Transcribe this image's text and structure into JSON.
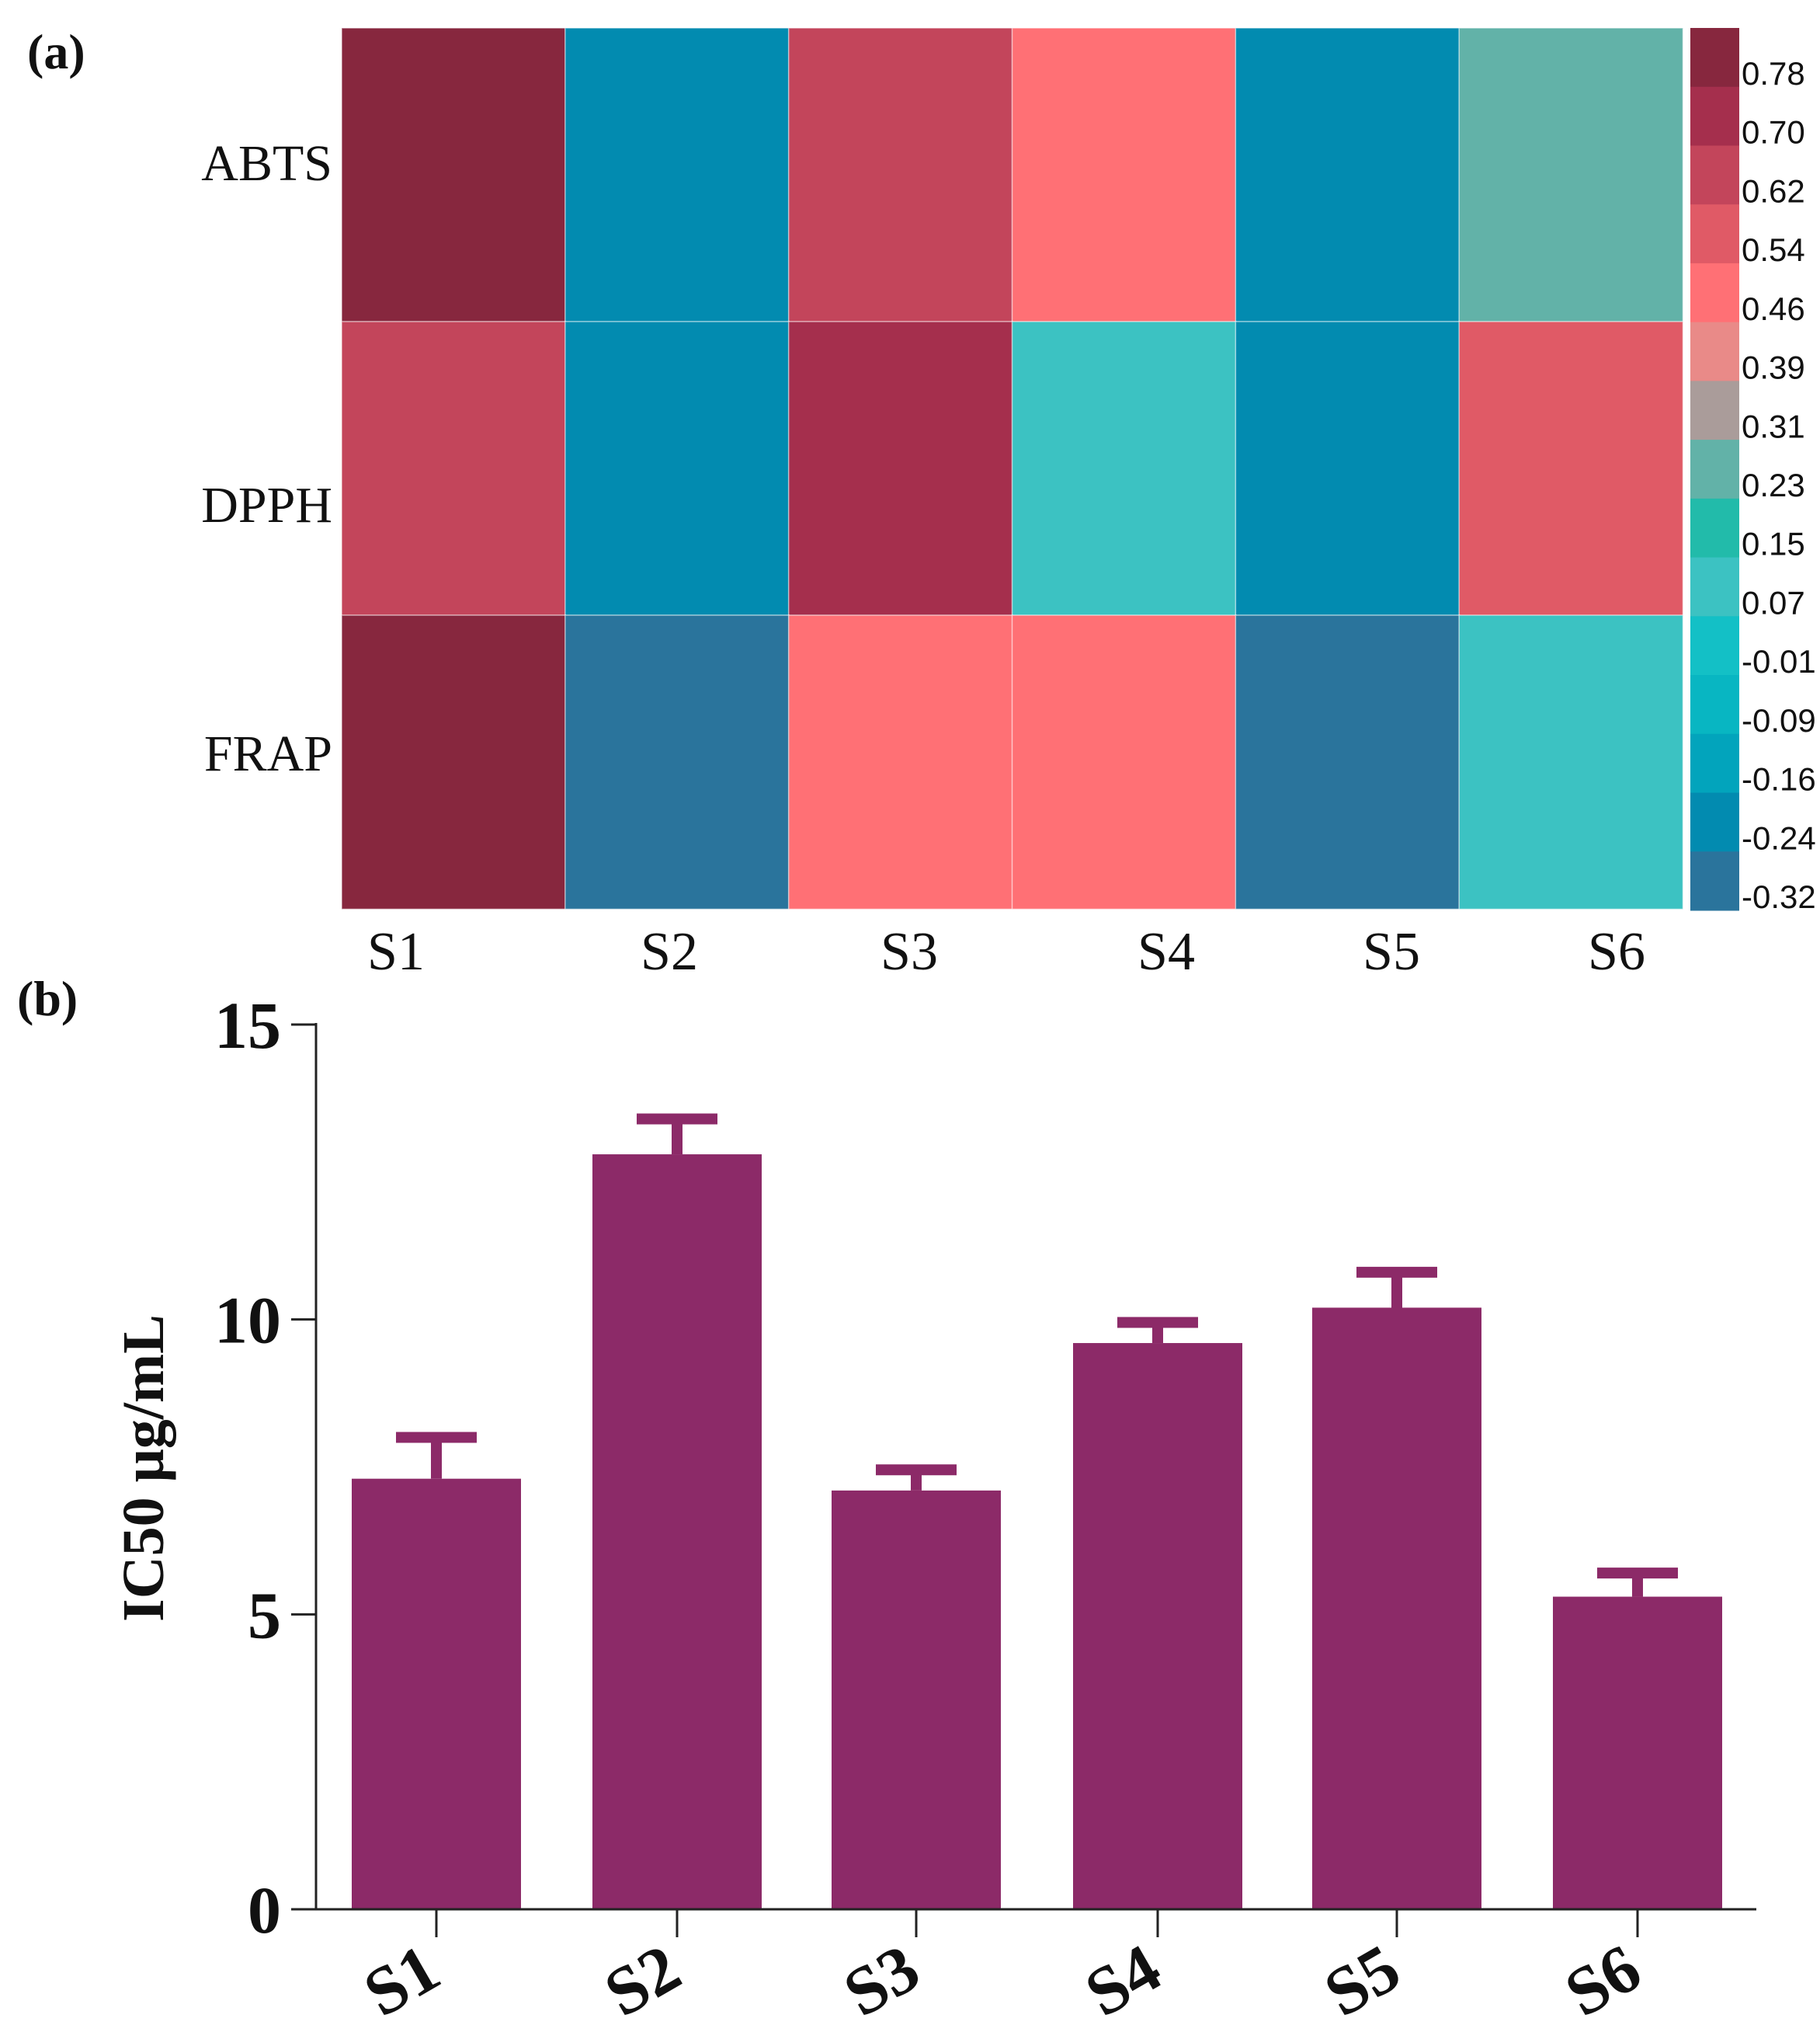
{
  "figure": {
    "panel_a_label": "(a)",
    "panel_b_label": "(b)"
  },
  "chart_data": [
    {
      "type": "heatmap",
      "title": "",
      "rows": [
        "ABTS",
        "DPPH",
        "FRAP"
      ],
      "columns": [
        "S1",
        "S2",
        "S3",
        "S4",
        "S5",
        "S6"
      ],
      "values": [
        [
          0.8,
          -0.26,
          0.62,
          0.46,
          -0.26,
          0.23
        ],
        [
          0.62,
          -0.26,
          0.72,
          0.07,
          -0.26,
          0.54
        ],
        [
          0.8,
          -0.32,
          0.46,
          0.46,
          -0.32,
          0.07
        ]
      ],
      "colorbar": {
        "tick_labels": [
          "0.78",
          "0.70",
          "0.62",
          "0.54",
          "0.46",
          "0.39",
          "0.31",
          "0.23",
          "0.15",
          "0.07",
          "-0.01",
          "-0.09",
          "-0.16",
          "-0.24",
          "-0.32"
        ],
        "levels": [
          {
            "value": 0.78,
            "color": "#87273e"
          },
          {
            "value": 0.7,
            "color": "#a52f4d"
          },
          {
            "value": 0.62,
            "color": "#c3455b"
          },
          {
            "value": 0.54,
            "color": "#e05a66"
          },
          {
            "value": 0.46,
            "color": "#ff7075"
          },
          {
            "value": 0.39,
            "color": "#e98a88"
          },
          {
            "value": 0.31,
            "color": "#aa9c9a"
          },
          {
            "value": 0.23,
            "color": "#62b2a8"
          },
          {
            "value": 0.15,
            "color": "#22bbaa"
          },
          {
            "value": 0.07,
            "color": "#3cc2c2"
          },
          {
            "value": -0.01,
            "color": "#13c0c6"
          },
          {
            "value": -0.09,
            "color": "#08b6c2"
          },
          {
            "value": -0.16,
            "color": "#02a4bc"
          },
          {
            "value": -0.24,
            "color": "#028bb0"
          },
          {
            "value": -0.32,
            "color": "#2a749c"
          }
        ]
      }
    },
    {
      "type": "bar",
      "title": "",
      "categories": [
        "S1",
        "S2",
        "S3",
        "S4",
        "S5",
        "S6"
      ],
      "values": [
        7.3,
        12.8,
        7.1,
        9.6,
        10.2,
        5.3
      ],
      "errors": [
        0.7,
        0.6,
        0.35,
        0.35,
        0.6,
        0.4
      ],
      "ylabel": "IC50 μg/mL",
      "xlabel": "",
      "ylim": [
        0,
        15
      ],
      "yticks": [
        "0",
        "5",
        "10",
        "15"
      ],
      "bar_color": "#8c2a68"
    }
  ]
}
